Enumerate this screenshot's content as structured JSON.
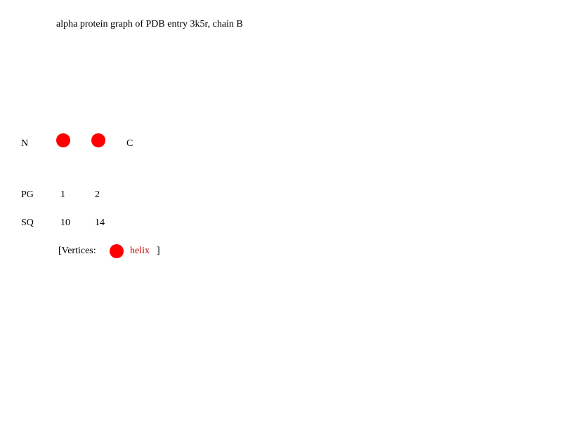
{
  "title": "alpha protein graph of PDB entry 3k5r, chain B",
  "termini": {
    "n": "N",
    "c": "C"
  },
  "vertex_color": "#ff0000",
  "legend_text_color": "#cc0000",
  "vertices": [
    {
      "type": "helix",
      "pg": "1",
      "sq": "10"
    },
    {
      "type": "helix",
      "pg": "2",
      "sq": "14"
    }
  ],
  "rows": {
    "pg_label": "PG",
    "sq_label": "SQ"
  },
  "legend": {
    "open": "[Vertices:",
    "helix_label": "helix",
    "close": "]"
  }
}
